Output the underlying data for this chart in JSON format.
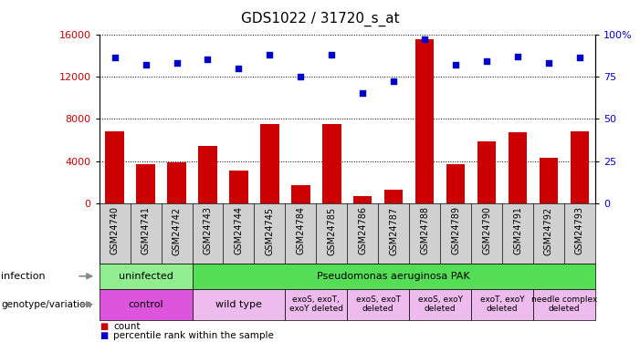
{
  "title": "GDS1022 / 31720_s_at",
  "samples": [
    "GSM24740",
    "GSM24741",
    "GSM24742",
    "GSM24743",
    "GSM24744",
    "GSM24745",
    "GSM24784",
    "GSM24785",
    "GSM24786",
    "GSM24787",
    "GSM24788",
    "GSM24789",
    "GSM24790",
    "GSM24791",
    "GSM24792",
    "GSM24793"
  ],
  "counts": [
    6800,
    3700,
    3900,
    5400,
    3100,
    7500,
    1700,
    7500,
    700,
    1300,
    15500,
    3700,
    5900,
    6700,
    4300,
    6800
  ],
  "percentiles": [
    86,
    82,
    83,
    85,
    80,
    88,
    75,
    88,
    65,
    72,
    97,
    82,
    84,
    87,
    83,
    86
  ],
  "bar_color": "#cc0000",
  "dot_color": "#0000cc",
  "ylim_left": [
    0,
    16000
  ],
  "ylim_right": [
    0,
    100
  ],
  "yticks_left": [
    0,
    4000,
    8000,
    12000,
    16000
  ],
  "yticks_right": [
    0,
    25,
    50,
    75,
    100
  ],
  "ytick_labels_right": [
    "0",
    "25",
    "50",
    "75",
    "100%"
  ],
  "inf_uninfected_color": "#90ee90",
  "inf_pak_color": "#55dd55",
  "gen_control_color": "#dd55dd",
  "gen_other_color": "#eebbee",
  "xtick_bg": "#d0d0d0",
  "infection_label": "infection",
  "genotype_label": "genotype/variation",
  "inf_uninfected": "uninfected",
  "inf_pak": "Pseudomonas aeruginosa PAK",
  "gen_control": "control",
  "gen_wildtype": "wild type",
  "gen_exoSTexoY": "exoS, exoT,\nexoY deleted",
  "gen_exoSTexoT": "exoS, exoT\ndeleted",
  "gen_exoSexoY": "exoS, exoY\ndeleted",
  "gen_exoTexoY": "exoT, exoY\ndeleted",
  "gen_needle": "needle complex\ndeleted",
  "legend_count": "count",
  "legend_pct": "percentile rank within the sample"
}
